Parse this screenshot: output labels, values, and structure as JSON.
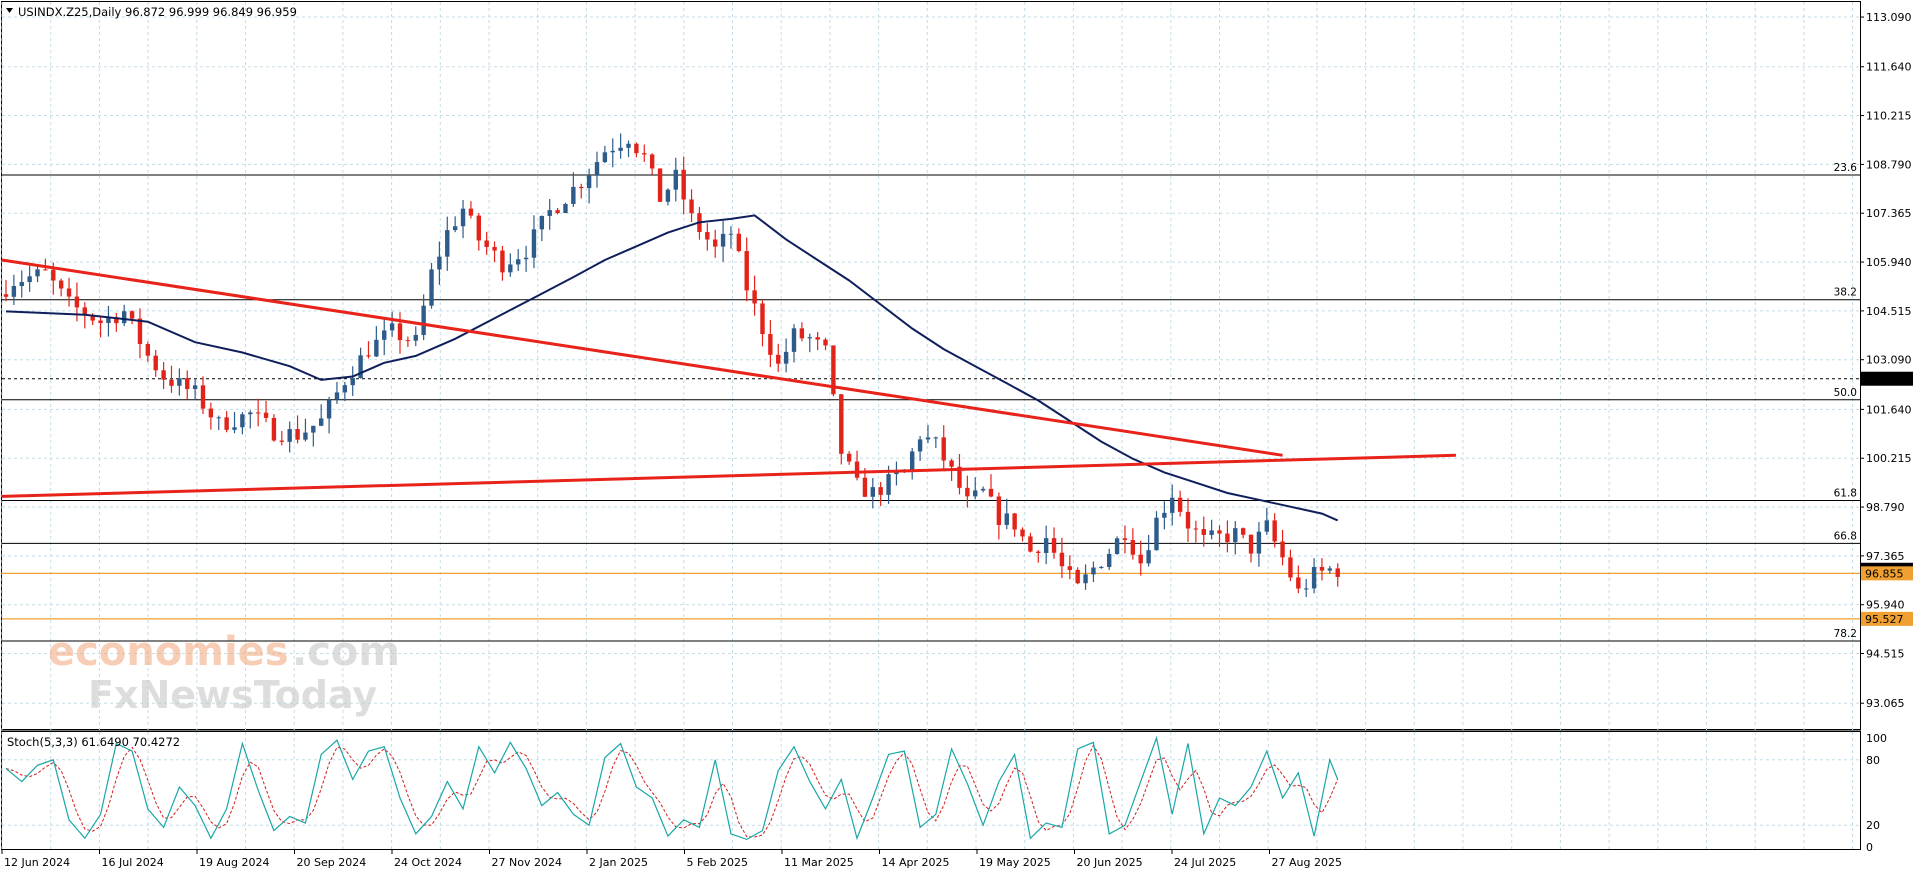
{
  "header": {
    "symbol": "USINDX.Z25,Daily",
    "ohlc": "96.872 96.999 96.849 96.959",
    "menu_arrow": "triangle-down-icon"
  },
  "indicator": {
    "label": "Stoch(5,3,3) 61.6490 70.4272"
  },
  "watermark": {
    "line1a": "economies",
    "line1b": ".com",
    "line2": "FxNewsToday"
  },
  "colors": {
    "bull": "#2e5c8a",
    "bear": "#e2231a",
    "ma": "#0e1f5c",
    "trend": "#e8231a",
    "fib": "#000000",
    "support": "#f0a030",
    "stoch_main": "#1aa6a6",
    "stoch_signal": "#d21e1e",
    "grid": "#c4dde6"
  },
  "chart_data": {
    "type": "candlestick",
    "x_labels": [
      "12 Jun 2024",
      "16 Jul 2024",
      "19 Aug 2024",
      "20 Sep 2024",
      "24 Oct 2024",
      "27 Nov 2024",
      "2 Jan 2025",
      "5 Feb 2025",
      "11 Mar 2025",
      "14 Apr 2025",
      "19 May 2025",
      "20 Jun 2025",
      "24 Jul 2025",
      "27 Aug 2025"
    ],
    "y_ticks": [
      "113.090",
      "111.640",
      "110.215",
      "108.790",
      "107.365",
      "105.940",
      "104.515",
      "103.090",
      "101.640",
      "100.215",
      "98.790",
      "97.365",
      "95.940",
      "94.515",
      "93.065"
    ],
    "ylim": [
      92.4,
      113.5
    ],
    "price_path": [
      [
        0,
        105.0
      ],
      [
        2,
        105.4
      ],
      [
        6,
        105.6
      ],
      [
        9,
        104.7
      ],
      [
        13,
        104.2
      ],
      [
        16,
        104.5
      ],
      [
        19,
        103.2
      ],
      [
        21,
        102.6
      ],
      [
        25,
        102.1
      ],
      [
        28,
        101.2
      ],
      [
        32,
        101.5
      ],
      [
        35,
        101.0
      ],
      [
        38,
        100.9
      ],
      [
        41,
        101.3
      ],
      [
        44,
        102.5
      ],
      [
        47,
        103.4
      ],
      [
        50,
        103.9
      ],
      [
        53,
        103.6
      ],
      [
        55,
        105.6
      ],
      [
        57,
        106.8
      ],
      [
        59,
        107.5
      ],
      [
        61,
        106.6
      ],
      [
        64,
        105.9
      ],
      [
        67,
        106.3
      ],
      [
        70,
        107.4
      ],
      [
        74,
        108.3
      ],
      [
        77,
        109.2
      ],
      [
        80,
        109.6
      ],
      [
        82,
        109.0
      ],
      [
        84,
        107.8
      ],
      [
        86,
        108.4
      ],
      [
        88,
        107.2
      ],
      [
        91,
        106.3
      ],
      [
        93,
        106.8
      ],
      [
        95,
        105.2
      ],
      [
        97,
        104.0
      ],
      [
        99,
        102.9
      ],
      [
        101,
        103.8
      ],
      [
        103,
        103.7
      ],
      [
        105,
        103.3
      ],
      [
        107,
        100.4
      ],
      [
        109,
        99.4
      ],
      [
        111,
        99.2
      ],
      [
        113,
        99.5
      ],
      [
        115,
        99.8
      ],
      [
        117,
        100.9
      ],
      [
        119,
        100.6
      ],
      [
        121,
        99.8
      ],
      [
        123,
        98.9
      ],
      [
        125,
        99.2
      ],
      [
        127,
        98.5
      ],
      [
        129,
        98.3
      ],
      [
        131,
        97.5
      ],
      [
        133,
        97.9
      ],
      [
        135,
        97.0
      ],
      [
        137,
        96.4
      ],
      [
        139,
        97.0
      ],
      [
        141,
        97.5
      ],
      [
        143,
        98.1
      ],
      [
        145,
        97.2
      ],
      [
        147,
        98.4
      ],
      [
        149,
        99.2
      ],
      [
        151,
        98.3
      ],
      [
        153,
        97.8
      ],
      [
        155,
        97.9
      ],
      [
        157,
        98.0
      ],
      [
        159,
        97.6
      ],
      [
        161,
        98.2
      ],
      [
        163,
        97.3
      ],
      [
        165,
        96.3
      ],
      [
        167,
        96.8
      ],
      [
        169,
        96.96
      ]
    ],
    "candle_count": 170,
    "moving_average": [
      [
        0,
        104.5
      ],
      [
        10,
        104.4
      ],
      [
        18,
        104.2
      ],
      [
        24,
        103.6
      ],
      [
        30,
        103.3
      ],
      [
        36,
        102.9
      ],
      [
        40,
        102.5
      ],
      [
        44,
        102.6
      ],
      [
        48,
        103.0
      ],
      [
        52,
        103.2
      ],
      [
        57,
        103.7
      ],
      [
        62,
        104.3
      ],
      [
        67,
        104.9
      ],
      [
        72,
        105.5
      ],
      [
        76,
        106.0
      ],
      [
        80,
        106.4
      ],
      [
        84,
        106.8
      ],
      [
        88,
        107.1
      ],
      [
        92,
        107.2
      ],
      [
        95,
        107.3
      ],
      [
        99,
        106.6
      ],
      [
        103,
        106.0
      ],
      [
        107,
        105.4
      ],
      [
        111,
        104.7
      ],
      [
        115,
        104.0
      ],
      [
        119,
        103.4
      ],
      [
        123,
        102.9
      ],
      [
        127,
        102.4
      ],
      [
        131,
        101.9
      ],
      [
        135,
        101.3
      ],
      [
        139,
        100.7
      ],
      [
        143,
        100.2
      ],
      [
        147,
        99.8
      ],
      [
        151,
        99.5
      ],
      [
        155,
        99.2
      ],
      [
        159,
        99.0
      ],
      [
        163,
        98.8
      ],
      [
        167,
        98.6
      ],
      [
        169,
        98.4
      ]
    ],
    "trend_lines": [
      {
        "from": [
          0,
          106.0
        ],
        "to": [
          162,
          100.3
        ]
      },
      {
        "from": [
          0,
          99.1
        ],
        "to": [
          184,
          100.3
        ]
      }
    ],
    "fib_levels": [
      {
        "label": "23.6",
        "price": 108.48
      },
      {
        "label": "38.2",
        "price": 104.84
      },
      {
        "label": "50.0",
        "price": 101.92
      },
      {
        "label": "61.8",
        "price": 98.98
      },
      {
        "label": "66.8",
        "price": 97.73
      },
      {
        "label": "78.2",
        "price": 94.88
      }
    ],
    "dotted_level": {
      "label": "102.535",
      "price": 102.535
    },
    "support_levels": [
      {
        "label": "96.855",
        "price": 96.855
      },
      {
        "label": "95.527",
        "price": 95.527
      }
    ],
    "price_tag": {
      "label": "96.959",
      "price": 96.959
    },
    "stochastic": {
      "name": "Stoch(5,3,3)",
      "k_last": 61.649,
      "d_last": 70.4272,
      "levels": [
        "100",
        "80",
        "20",
        "0"
      ],
      "k_path": [
        [
          0,
          72
        ],
        [
          2,
          60
        ],
        [
          4,
          75
        ],
        [
          6,
          80
        ],
        [
          8,
          25
        ],
        [
          10,
          8
        ],
        [
          12,
          30
        ],
        [
          14,
          95
        ],
        [
          16,
          88
        ],
        [
          18,
          35
        ],
        [
          20,
          18
        ],
        [
          22,
          55
        ],
        [
          24,
          38
        ],
        [
          26,
          8
        ],
        [
          28,
          35
        ],
        [
          30,
          95
        ],
        [
          32,
          52
        ],
        [
          34,
          15
        ],
        [
          36,
          28
        ],
        [
          38,
          22
        ],
        [
          40,
          85
        ],
        [
          42,
          98
        ],
        [
          44,
          62
        ],
        [
          46,
          88
        ],
        [
          48,
          92
        ],
        [
          50,
          45
        ],
        [
          52,
          12
        ],
        [
          54,
          28
        ],
        [
          56,
          60
        ],
        [
          58,
          35
        ],
        [
          60,
          92
        ],
        [
          62,
          68
        ],
        [
          64,
          96
        ],
        [
          66,
          72
        ],
        [
          68,
          38
        ],
        [
          70,
          50
        ],
        [
          72,
          30
        ],
        [
          74,
          20
        ],
        [
          76,
          82
        ],
        [
          78,
          95
        ],
        [
          80,
          55
        ],
        [
          82,
          45
        ],
        [
          84,
          10
        ],
        [
          86,
          25
        ],
        [
          88,
          18
        ],
        [
          90,
          80
        ],
        [
          92,
          12
        ],
        [
          94,
          7
        ],
        [
          96,
          15
        ],
        [
          98,
          70
        ],
        [
          100,
          92
        ],
        [
          102,
          60
        ],
        [
          104,
          35
        ],
        [
          106,
          62
        ],
        [
          108,
          8
        ],
        [
          110,
          45
        ],
        [
          112,
          85
        ],
        [
          114,
          88
        ],
        [
          116,
          18
        ],
        [
          118,
          30
        ],
        [
          120,
          90
        ],
        [
          122,
          58
        ],
        [
          124,
          20
        ],
        [
          126,
          60
        ],
        [
          128,
          85
        ],
        [
          130,
          8
        ],
        [
          132,
          22
        ],
        [
          134,
          18
        ],
        [
          136,
          90
        ],
        [
          138,
          96
        ],
        [
          140,
          12
        ],
        [
          142,
          20
        ],
        [
          144,
          60
        ],
        [
          146,
          100
        ],
        [
          148,
          30
        ],
        [
          150,
          95
        ],
        [
          152,
          12
        ],
        [
          154,
          45
        ],
        [
          156,
          38
        ],
        [
          158,
          55
        ],
        [
          160,
          88
        ],
        [
          162,
          45
        ],
        [
          164,
          68
        ],
        [
          166,
          10
        ],
        [
          168,
          80
        ],
        [
          169,
          62
        ]
      ]
    }
  }
}
